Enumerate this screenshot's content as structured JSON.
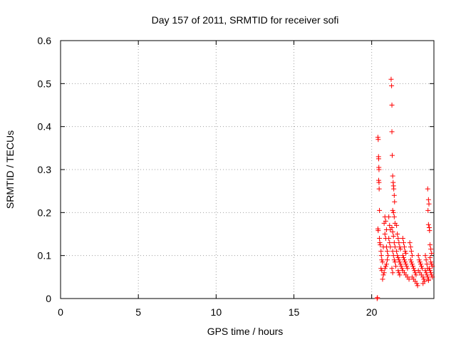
{
  "chart_data": {
    "type": "scatter",
    "title": "Day 157 of 2011, SRMTID for receiver sofi",
    "xlabel": "GPS time / hours",
    "ylabel": "SRMTID / TECUs",
    "xlim": [
      0,
      24
    ],
    "ylim": [
      0,
      0.6
    ],
    "grid": true,
    "marker": "+",
    "color": "#ff0000",
    "x_ticks": [
      0,
      5,
      10,
      15,
      20
    ],
    "y_ticks": [
      0,
      0.1,
      0.2,
      0.3,
      0.4,
      0.5,
      0.6
    ],
    "x_tick_labels": [
      "0",
      "5",
      "10",
      "15",
      "20"
    ],
    "y_tick_labels": [
      "0",
      "0.1",
      "0.2",
      "0.3",
      "0.4",
      "0.5",
      "0.6"
    ],
    "series": [
      {
        "name": "SRMTID",
        "points": [
          [
            20.35,
            0.0
          ],
          [
            20.37,
            0.002
          ],
          [
            20.4,
            0.375
          ],
          [
            20.42,
            0.37
          ],
          [
            20.44,
            0.33
          ],
          [
            20.45,
            0.325
          ],
          [
            20.46,
            0.305
          ],
          [
            20.47,
            0.3
          ],
          [
            20.45,
            0.275
          ],
          [
            20.47,
            0.27
          ],
          [
            20.48,
            0.255
          ],
          [
            20.4,
            0.162
          ],
          [
            20.42,
            0.158
          ],
          [
            20.5,
            0.205
          ],
          [
            20.5,
            0.14
          ],
          [
            20.52,
            0.13
          ],
          [
            20.55,
            0.125
          ],
          [
            20.6,
            0.11
          ],
          [
            20.62,
            0.1
          ],
          [
            20.65,
            0.09
          ],
          [
            20.7,
            0.085
          ],
          [
            20.6,
            0.07
          ],
          [
            20.65,
            0.065
          ],
          [
            20.75,
            0.12
          ],
          [
            20.8,
            0.175
          ],
          [
            20.85,
            0.19
          ],
          [
            20.9,
            0.18
          ],
          [
            20.95,
            0.16
          ],
          [
            20.85,
            0.15
          ],
          [
            20.9,
            0.14
          ],
          [
            20.95,
            0.12
          ],
          [
            21.0,
            0.11
          ],
          [
            21.05,
            0.1
          ],
          [
            21.0,
            0.09
          ],
          [
            20.95,
            0.08
          ],
          [
            20.9,
            0.075
          ],
          [
            20.85,
            0.07
          ],
          [
            20.8,
            0.06
          ],
          [
            20.75,
            0.055
          ],
          [
            20.7,
            0.045
          ],
          [
            21.1,
            0.19
          ],
          [
            21.15,
            0.17
          ],
          [
            21.2,
            0.16
          ],
          [
            21.1,
            0.14
          ],
          [
            21.15,
            0.13
          ],
          [
            21.2,
            0.12
          ],
          [
            21.25,
            0.51
          ],
          [
            21.28,
            0.495
          ],
          [
            21.3,
            0.45
          ],
          [
            21.3,
            0.388
          ],
          [
            21.32,
            0.333
          ],
          [
            21.35,
            0.285
          ],
          [
            21.38,
            0.27
          ],
          [
            21.4,
            0.262
          ],
          [
            21.42,
            0.255
          ],
          [
            21.45,
            0.24
          ],
          [
            21.47,
            0.225
          ],
          [
            21.35,
            0.205
          ],
          [
            21.4,
            0.2
          ],
          [
            21.45,
            0.19
          ],
          [
            21.5,
            0.175
          ],
          [
            21.3,
            0.165
          ],
          [
            21.35,
            0.155
          ],
          [
            21.4,
            0.145
          ],
          [
            21.45,
            0.13
          ],
          [
            21.5,
            0.12
          ],
          [
            21.35,
            0.11
          ],
          [
            21.4,
            0.1
          ],
          [
            21.45,
            0.09
          ],
          [
            21.5,
            0.085
          ],
          [
            21.55,
            0.075
          ],
          [
            21.3,
            0.07
          ],
          [
            21.35,
            0.06
          ],
          [
            21.6,
            0.17
          ],
          [
            21.65,
            0.15
          ],
          [
            21.7,
            0.14
          ],
          [
            21.75,
            0.13
          ],
          [
            21.8,
            0.12
          ],
          [
            21.85,
            0.115
          ],
          [
            21.6,
            0.11
          ],
          [
            21.65,
            0.1
          ],
          [
            21.7,
            0.095
          ],
          [
            21.75,
            0.09
          ],
          [
            21.8,
            0.085
          ],
          [
            21.85,
            0.08
          ],
          [
            21.9,
            0.075
          ],
          [
            21.95,
            0.07
          ],
          [
            21.7,
            0.065
          ],
          [
            21.75,
            0.06
          ],
          [
            21.8,
            0.055
          ],
          [
            22.0,
            0.14
          ],
          [
            22.05,
            0.13
          ],
          [
            22.1,
            0.12
          ],
          [
            22.15,
            0.11
          ],
          [
            22.2,
            0.105
          ],
          [
            22.0,
            0.1
          ],
          [
            22.05,
            0.095
          ],
          [
            22.1,
            0.09
          ],
          [
            22.15,
            0.085
          ],
          [
            22.2,
            0.08
          ],
          [
            22.25,
            0.075
          ],
          [
            22.3,
            0.07
          ],
          [
            22.0,
            0.065
          ],
          [
            22.1,
            0.06
          ],
          [
            22.2,
            0.055
          ],
          [
            22.3,
            0.05
          ],
          [
            22.4,
            0.045
          ],
          [
            22.45,
            0.13
          ],
          [
            22.5,
            0.12
          ],
          [
            22.55,
            0.11
          ],
          [
            22.6,
            0.1
          ],
          [
            22.5,
            0.09
          ],
          [
            22.55,
            0.085
          ],
          [
            22.6,
            0.08
          ],
          [
            22.65,
            0.075
          ],
          [
            22.7,
            0.07
          ],
          [
            22.75,
            0.065
          ],
          [
            22.8,
            0.06
          ],
          [
            22.85,
            0.055
          ],
          [
            22.6,
            0.05
          ],
          [
            22.7,
            0.045
          ],
          [
            22.8,
            0.04
          ],
          [
            22.9,
            0.035
          ],
          [
            22.95,
            0.03
          ],
          [
            23.0,
            0.1
          ],
          [
            23.05,
            0.09
          ],
          [
            23.1,
            0.085
          ],
          [
            23.15,
            0.08
          ],
          [
            23.2,
            0.075
          ],
          [
            23.25,
            0.07
          ],
          [
            23.0,
            0.065
          ],
          [
            23.1,
            0.06
          ],
          [
            23.2,
            0.055
          ],
          [
            23.3,
            0.05
          ],
          [
            23.35,
            0.045
          ],
          [
            23.4,
            0.04
          ],
          [
            23.45,
            0.1
          ],
          [
            23.5,
            0.09
          ],
          [
            23.55,
            0.08
          ],
          [
            23.6,
            0.07
          ],
          [
            23.45,
            0.065
          ],
          [
            23.5,
            0.06
          ],
          [
            23.55,
            0.055
          ],
          [
            23.6,
            0.05
          ],
          [
            23.65,
            0.045
          ],
          [
            23.3,
            0.035
          ],
          [
            23.6,
            0.255
          ],
          [
            23.65,
            0.23
          ],
          [
            23.68,
            0.22
          ],
          [
            23.62,
            0.205
          ],
          [
            23.65,
            0.172
          ],
          [
            23.7,
            0.165
          ],
          [
            23.72,
            0.158
          ],
          [
            23.75,
            0.125
          ],
          [
            23.8,
            0.115
          ],
          [
            23.85,
            0.105
          ],
          [
            23.75,
            0.095
          ],
          [
            23.8,
            0.085
          ],
          [
            23.85,
            0.08
          ],
          [
            23.9,
            0.075
          ],
          [
            23.7,
            0.07
          ],
          [
            23.75,
            0.065
          ],
          [
            23.8,
            0.06
          ],
          [
            23.85,
            0.055
          ],
          [
            23.9,
            0.05
          ],
          [
            23.65,
            0.042
          ]
        ]
      }
    ]
  }
}
